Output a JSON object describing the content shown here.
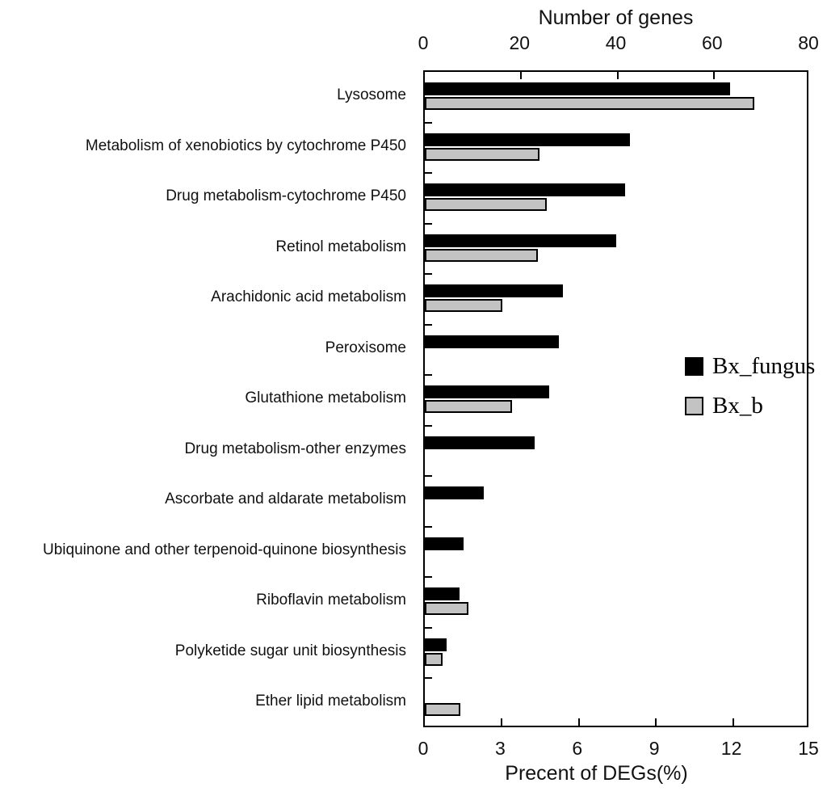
{
  "chart_data": {
    "type": "bar",
    "orientation": "horizontal",
    "title": "",
    "categories": [
      "Lysosome",
      "Metabolism of xenobiotics by cytochrome P450",
      "Drug metabolism-cytochrome P450",
      "Retinol metabolism",
      "Arachidonic acid metabolism",
      "Peroxisome",
      "Glutathione metabolism",
      "Drug metabolism-other enzymes",
      "Ascorbate and aldarate metabolism",
      "Ubiquinone and other terpenoid-quinone biosynthesis",
      "Riboflavin metabolism",
      "Polyketide sugar unit biosynthesis",
      "Ether lipid metabolism"
    ],
    "series": [
      {
        "name": "Bx_fungus",
        "color": "#000000",
        "values_genes": [
          64,
          43,
          42,
          40,
          29,
          28,
          26,
          23,
          12.3,
          8.1,
          7.3,
          4.5,
          0
        ],
        "values_percent": [
          11.9,
          8.1,
          7.9,
          7.5,
          5.4,
          5.3,
          4.9,
          4.4,
          2.3,
          1.5,
          1.4,
          0.8,
          0
        ]
      },
      {
        "name": "Bx_b",
        "color": "#c3c3c3",
        "values_genes": [
          69,
          24,
          25.5,
          23.7,
          16.2,
          0,
          18.2,
          0,
          0,
          0,
          9.2,
          3.8,
          7.4
        ],
        "values_percent": [
          12.9,
          4.5,
          4.8,
          4.4,
          3.0,
          0,
          3.4,
          0,
          0,
          0,
          1.7,
          0.7,
          1.4
        ]
      }
    ],
    "top_axis": {
      "label": "Number of genes",
      "min": 0,
      "max": 80,
      "ticks": [
        0,
        20,
        40,
        60,
        80
      ]
    },
    "bottom_axis": {
      "label": "Precent of DEGs(%)",
      "min": 0,
      "max": 15,
      "ticks": [
        0,
        3,
        6,
        9,
        12,
        15
      ]
    },
    "legend": {
      "position": "middle-right",
      "entries": [
        "Bx_fungus",
        "Bx_b"
      ]
    },
    "grid": false,
    "frame": "box"
  }
}
